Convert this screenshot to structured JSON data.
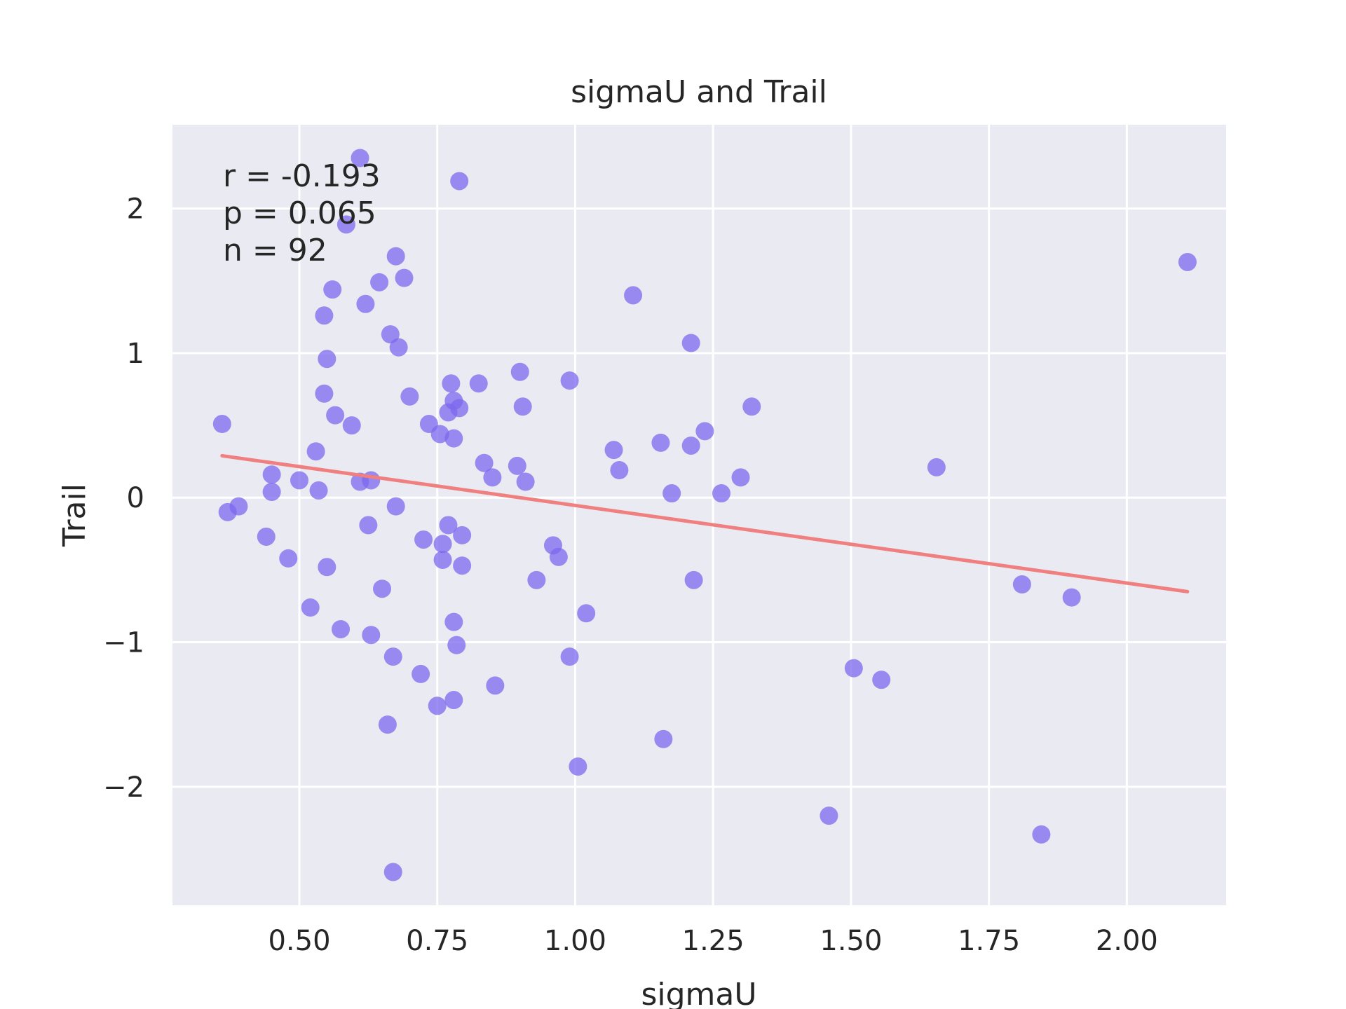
{
  "chart_data": {
    "type": "scatter",
    "title": "sigmaU and Trail",
    "xlabel": "sigmaU",
    "ylabel": "Trail",
    "xlim": [
      0.27,
      2.18
    ],
    "ylim": [
      -2.82,
      2.58
    ],
    "xticks": [
      0.5,
      0.75,
      1.0,
      1.25,
      1.5,
      1.75,
      2.0
    ],
    "xtick_labels": [
      "0.50",
      "0.75",
      "1.00",
      "1.25",
      "1.50",
      "1.75",
      "2.00"
    ],
    "yticks": [
      -2,
      -1,
      0,
      1,
      2
    ],
    "ytick_labels": [
      "−2",
      "−1",
      "0",
      "1",
      "2"
    ],
    "grid": true,
    "background": "#eaeaf2",
    "point_color": "#7b68ee",
    "line_color": "#f08080",
    "stats": [
      "r = -0.193",
      "p = 0.065",
      "n = 92"
    ],
    "fit_line": {
      "x": [
        0.36,
        2.11
      ],
      "y": [
        0.29,
        -0.65
      ]
    },
    "points": [
      {
        "x": 0.36,
        "y": 0.51
      },
      {
        "x": 0.37,
        "y": -0.1
      },
      {
        "x": 0.39,
        "y": -0.06
      },
      {
        "x": 0.44,
        "y": -0.27
      },
      {
        "x": 0.45,
        "y": 0.16
      },
      {
        "x": 0.45,
        "y": 0.04
      },
      {
        "x": 0.48,
        "y": -0.42
      },
      {
        "x": 0.5,
        "y": 0.12
      },
      {
        "x": 0.52,
        "y": -0.76
      },
      {
        "x": 0.53,
        "y": 0.32
      },
      {
        "x": 0.535,
        "y": 0.05
      },
      {
        "x": 0.545,
        "y": 0.72
      },
      {
        "x": 0.545,
        "y": 1.26
      },
      {
        "x": 0.55,
        "y": -0.48
      },
      {
        "x": 0.55,
        "y": 0.96
      },
      {
        "x": 0.56,
        "y": 1.44
      },
      {
        "x": 0.565,
        "y": 0.57
      },
      {
        "x": 0.575,
        "y": -0.91
      },
      {
        "x": 0.585,
        "y": 1.89
      },
      {
        "x": 0.595,
        "y": 0.5
      },
      {
        "x": 0.61,
        "y": 0.11
      },
      {
        "x": 0.61,
        "y": 2.35
      },
      {
        "x": 0.62,
        "y": 1.34
      },
      {
        "x": 0.625,
        "y": -0.19
      },
      {
        "x": 0.63,
        "y": 0.12
      },
      {
        "x": 0.63,
        "y": -0.95
      },
      {
        "x": 0.645,
        "y": 1.49
      },
      {
        "x": 0.65,
        "y": -0.63
      },
      {
        "x": 0.66,
        "y": -1.57
      },
      {
        "x": 0.665,
        "y": 1.13
      },
      {
        "x": 0.67,
        "y": -2.59
      },
      {
        "x": 0.67,
        "y": -1.1
      },
      {
        "x": 0.675,
        "y": -0.06
      },
      {
        "x": 0.675,
        "y": 1.67
      },
      {
        "x": 0.68,
        "y": 1.04
      },
      {
        "x": 0.69,
        "y": 1.52
      },
      {
        "x": 0.7,
        "y": 0.7
      },
      {
        "x": 0.72,
        "y": -1.22
      },
      {
        "x": 0.725,
        "y": -0.29
      },
      {
        "x": 0.735,
        "y": 0.51
      },
      {
        "x": 0.75,
        "y": -1.44
      },
      {
        "x": 0.755,
        "y": 0.44
      },
      {
        "x": 0.76,
        "y": -0.32
      },
      {
        "x": 0.76,
        "y": -0.43
      },
      {
        "x": 0.77,
        "y": 0.59
      },
      {
        "x": 0.77,
        "y": -0.19
      },
      {
        "x": 0.775,
        "y": 0.79
      },
      {
        "x": 0.78,
        "y": 0.67
      },
      {
        "x": 0.78,
        "y": 0.41
      },
      {
        "x": 0.78,
        "y": -1.4
      },
      {
        "x": 0.78,
        "y": -0.86
      },
      {
        "x": 0.785,
        "y": -1.02
      },
      {
        "x": 0.79,
        "y": 0.62
      },
      {
        "x": 0.79,
        "y": 2.19
      },
      {
        "x": 0.795,
        "y": -0.26
      },
      {
        "x": 0.795,
        "y": -0.47
      },
      {
        "x": 0.825,
        "y": 0.79
      },
      {
        "x": 0.835,
        "y": 0.24
      },
      {
        "x": 0.85,
        "y": 0.14
      },
      {
        "x": 0.855,
        "y": -1.3
      },
      {
        "x": 0.895,
        "y": 0.22
      },
      {
        "x": 0.9,
        "y": 0.87
      },
      {
        "x": 0.905,
        "y": 0.63
      },
      {
        "x": 0.91,
        "y": 0.11
      },
      {
        "x": 0.93,
        "y": -0.57
      },
      {
        "x": 0.96,
        "y": -0.33
      },
      {
        "x": 0.97,
        "y": -0.41
      },
      {
        "x": 0.99,
        "y": 0.81
      },
      {
        "x": 0.99,
        "y": -1.1
      },
      {
        "x": 1.005,
        "y": -1.86
      },
      {
        "x": 1.02,
        "y": -0.8
      },
      {
        "x": 1.07,
        "y": 0.33
      },
      {
        "x": 1.08,
        "y": 0.19
      },
      {
        "x": 1.105,
        "y": 1.4
      },
      {
        "x": 1.155,
        "y": 0.38
      },
      {
        "x": 1.16,
        "y": -1.67
      },
      {
        "x": 1.175,
        "y": 0.03
      },
      {
        "x": 1.21,
        "y": 0.36
      },
      {
        "x": 1.21,
        "y": 1.07
      },
      {
        "x": 1.215,
        "y": -0.57
      },
      {
        "x": 1.235,
        "y": 0.46
      },
      {
        "x": 1.265,
        "y": 0.03
      },
      {
        "x": 1.3,
        "y": 0.14
      },
      {
        "x": 1.32,
        "y": 0.63
      },
      {
        "x": 1.46,
        "y": -2.2
      },
      {
        "x": 1.505,
        "y": -1.18
      },
      {
        "x": 1.555,
        "y": -1.26
      },
      {
        "x": 1.655,
        "y": 0.21
      },
      {
        "x": 1.81,
        "y": -0.6
      },
      {
        "x": 1.845,
        "y": -2.33
      },
      {
        "x": 1.9,
        "y": -0.69
      },
      {
        "x": 2.11,
        "y": 1.63
      }
    ]
  }
}
